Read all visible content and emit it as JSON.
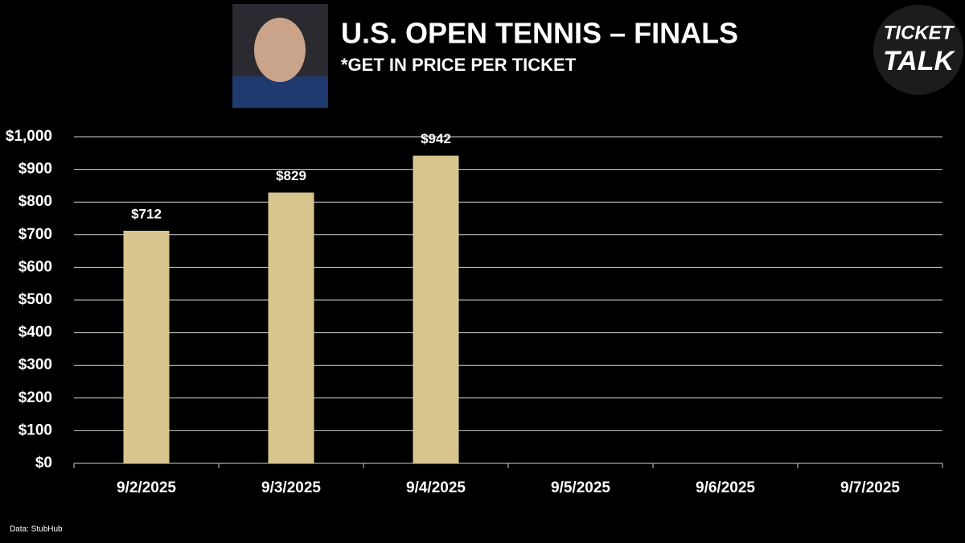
{
  "chart_data": {
    "type": "bar",
    "title": "U.S. OPEN TENNIS – FINALS",
    "subtitle": "*GET IN PRICE PER TICKET",
    "categories": [
      "9/2/2025",
      "9/3/2025",
      "9/4/2025",
      "9/5/2025",
      "9/6/2025",
      "9/7/2025"
    ],
    "values": [
      712,
      829,
      942,
      null,
      null,
      null
    ],
    "value_labels": [
      "$712",
      "$829",
      "$942",
      null,
      null,
      null
    ],
    "color": "#d9c68f",
    "ylim": [
      0,
      1000
    ],
    "yticks": [
      {
        "value": 0,
        "label": "$0"
      },
      {
        "value": 100,
        "label": "$100"
      },
      {
        "value": 200,
        "label": "$200"
      },
      {
        "value": 300,
        "label": "$300"
      },
      {
        "value": 400,
        "label": "$400"
      },
      {
        "value": 500,
        "label": "$500"
      },
      {
        "value": 600,
        "label": "$600"
      },
      {
        "value": 700,
        "label": "$700"
      },
      {
        "value": 800,
        "label": "$800"
      },
      {
        "value": 900,
        "label": "$900"
      },
      {
        "value": 1000,
        "label": "$1,000"
      }
    ],
    "grid": true,
    "source": "Data: StubHub"
  },
  "logo": {
    "line1": "TICKET",
    "line2": "TALK"
  }
}
